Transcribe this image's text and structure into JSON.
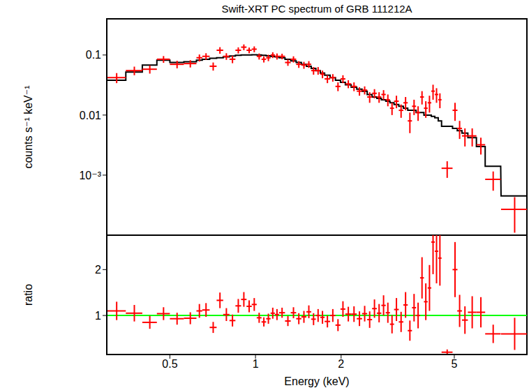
{
  "chart_data": [
    {
      "type": "scatter",
      "title": "Swift-XRT PC spectrum of GRB 111212A",
      "y_label": "counts s⁻¹ keV⁻¹",
      "log": true,
      "tick_labels": "y",
      "color": "#ff0000",
      "model_color": "#000000",
      "xlim": [
        0.3,
        9
      ],
      "xticks": [
        0.5,
        1,
        2,
        5
      ],
      "ylim": [
        0.0001,
        0.4
      ],
      "yticks": [
        {
          "value": 0.001,
          "label": "10⁻³"
        },
        0.01,
        0.1
      ],
      "x": [
        0.325,
        0.375,
        0.425,
        0.475,
        0.53,
        0.59,
        0.635,
        0.67,
        0.71,
        0.75,
        0.79,
        0.83,
        0.87,
        0.91,
        0.95,
        0.99,
        1.03,
        1.07,
        1.11,
        1.15,
        1.19,
        1.24,
        1.3,
        1.36,
        1.42,
        1.48,
        1.54,
        1.6,
        1.66,
        1.72,
        1.79,
        1.87,
        1.95,
        2.03,
        2.12,
        2.22,
        2.32,
        2.42,
        2.52,
        2.62,
        2.72,
        2.82,
        2.92,
        3.02,
        3.13,
        3.25,
        3.37,
        3.49,
        3.61,
        3.73,
        3.85,
        3.97,
        4.09,
        4.21,
        4.33,
        4.45,
        4.72,
        5.03,
        5.22,
        5.45,
        5.78,
        6.2,
        6.85,
        8.15
      ],
      "x_err": [
        [
          0.025,
          0.025
        ],
        [
          0.025,
          0.025
        ],
        [
          0.025,
          0.025
        ],
        [
          0.025,
          0.025
        ],
        [
          0.03,
          0.03
        ],
        [
          0.03,
          0.03
        ],
        [
          0.015,
          0.015
        ],
        [
          0.02,
          0.02
        ],
        [
          0.02,
          0.02
        ],
        [
          0.02,
          0.02
        ],
        [
          0.02,
          0.02
        ],
        [
          0.02,
          0.02
        ],
        [
          0.02,
          0.02
        ],
        [
          0.02,
          0.02
        ],
        [
          0.02,
          0.02
        ],
        [
          0.02,
          0.02
        ],
        [
          0.02,
          0.02
        ],
        [
          0.02,
          0.02
        ],
        [
          0.02,
          0.02
        ],
        [
          0.02,
          0.02
        ],
        [
          0.02,
          0.02
        ],
        [
          0.03,
          0.03
        ],
        [
          0.03,
          0.03
        ],
        [
          0.03,
          0.03
        ],
        [
          0.03,
          0.03
        ],
        [
          0.03,
          0.03
        ],
        [
          0.03,
          0.03
        ],
        [
          0.03,
          0.03
        ],
        [
          0.03,
          0.03
        ],
        [
          0.03,
          0.03
        ],
        [
          0.04,
          0.04
        ],
        [
          0.04,
          0.04
        ],
        [
          0.04,
          0.04
        ],
        [
          0.04,
          0.04
        ],
        [
          0.05,
          0.05
        ],
        [
          0.05,
          0.05
        ],
        [
          0.05,
          0.05
        ],
        [
          0.05,
          0.05
        ],
        [
          0.05,
          0.05
        ],
        [
          0.05,
          0.05
        ],
        [
          0.05,
          0.05
        ],
        [
          0.05,
          0.05
        ],
        [
          0.05,
          0.05
        ],
        [
          0.05,
          0.05
        ],
        [
          0.06,
          0.06
        ],
        [
          0.06,
          0.06
        ],
        [
          0.06,
          0.06
        ],
        [
          0.06,
          0.06
        ],
        [
          0.06,
          0.06
        ],
        [
          0.06,
          0.06
        ],
        [
          0.06,
          0.06
        ],
        [
          0.06,
          0.06
        ],
        [
          0.06,
          0.06
        ],
        [
          0.06,
          0.06
        ],
        [
          0.06,
          0.06
        ],
        [
          0.06,
          0.06
        ],
        [
          0.21,
          0.21
        ],
        [
          0.1,
          0.1
        ],
        [
          0.1,
          0.1
        ],
        [
          0.13,
          0.13
        ],
        [
          0.2,
          0.2
        ],
        [
          0.22,
          0.22
        ],
        [
          0.43,
          0.43
        ],
        [
          0.85,
          0.85
        ]
      ],
      "values": [
        0.042,
        0.055,
        0.058,
        0.085,
        0.07,
        0.072,
        0.09,
        0.095,
        0.065,
        0.12,
        0.095,
        0.085,
        0.12,
        0.135,
        0.12,
        0.125,
        0.095,
        0.085,
        0.09,
        0.1,
        0.095,
        0.095,
        0.075,
        0.085,
        0.07,
        0.068,
        0.07,
        0.055,
        0.055,
        0.048,
        0.04,
        0.042,
        0.03,
        0.04,
        0.033,
        0.03,
        0.025,
        0.026,
        0.02,
        0.023,
        0.02,
        0.022,
        0.018,
        0.013,
        0.017,
        0.012,
        0.016,
        0.008,
        0.014,
        0.011,
        0.02,
        0.013,
        0.016,
        0.025,
        0.022,
        0.018,
        0.0013,
        0.012,
        0.006,
        0.0045,
        0.0045,
        0.0032,
        0.00085,
        0.00027
      ],
      "y_err": [
        0.008,
        0.009,
        0.009,
        0.011,
        0.01,
        0.01,
        0.012,
        0.012,
        0.01,
        0.015,
        0.012,
        0.012,
        0.014,
        0.015,
        0.013,
        0.014,
        0.011,
        0.01,
        0.011,
        0.011,
        0.011,
        0.01,
        0.009,
        0.01,
        0.009,
        0.009,
        0.009,
        0.008,
        0.008,
        0.007,
        0.006,
        0.006,
        0.005,
        0.006,
        0.005,
        0.005,
        0.004,
        0.004,
        0.004,
        0.004,
        0.004,
        0.004,
        0.004,
        0.003,
        0.004,
        0.003,
        0.004,
        0.003,
        0.004,
        0.003,
        0.005,
        0.004,
        0.005,
        0.007,
        0.006,
        0.005,
        0.0004,
        0.004,
        0.002,
        0.0015,
        0.0015,
        0.001,
        0.0003,
        0.00016
      ],
      "model": [
        0.038,
        0.052,
        0.068,
        0.082,
        0.075,
        0.077,
        0.082,
        0.085,
        0.088,
        0.09,
        0.093,
        0.096,
        0.099,
        0.1,
        0.1,
        0.101,
        0.1,
        0.099,
        0.097,
        0.095,
        0.093,
        0.09,
        0.085,
        0.08,
        0.075,
        0.07,
        0.065,
        0.06,
        0.055,
        0.05,
        0.046,
        0.042,
        0.038,
        0.035,
        0.032,
        0.029,
        0.027,
        0.025,
        0.022,
        0.02,
        0.019,
        0.018,
        0.017,
        0.016,
        0.015,
        0.014,
        0.013,
        0.012,
        0.012,
        0.011,
        0.011,
        0.01,
        0.01,
        0.0095,
        0.009,
        0.008,
        0.0065,
        0.006,
        0.0055,
        0.005,
        0.0042,
        0.003,
        0.0014,
        0.00045
      ]
    },
    {
      "type": "scatter",
      "y_label": "ratio",
      "x_label": "Energy (keV)",
      "log": "x",
      "color": "#ff0000",
      "xlim": [
        0.3,
        9
      ],
      "xticks": [
        0.5,
        1,
        2,
        5
      ],
      "ylim": [
        0.15,
        2.75
      ],
      "yticks": [
        1,
        2
      ],
      "reference_line": {
        "y": 1,
        "color": "#00ff00"
      },
      "values": [
        1.1,
        1.05,
        0.85,
        1.04,
        0.93,
        0.94,
        1.1,
        1.12,
        0.74,
        1.33,
        1.02,
        0.89,
        1.21,
        1.35,
        1.2,
        1.24,
        0.95,
        0.86,
        0.93,
        1.05,
        1.02,
        1.06,
        0.88,
        1.06,
        0.93,
        0.97,
        1.08,
        0.92,
        1.0,
        0.96,
        0.87,
        1.0,
        0.79,
        1.14,
        1.03,
        1.03,
        0.93,
        1.04,
        0.91,
        1.15,
        1.05,
        1.22,
        1.06,
        0.81,
        1.13,
        0.86,
        1.23,
        0.67,
        1.17,
        1.0,
        1.82,
        1.3,
        1.6,
        2.6,
        2.4,
        2.25,
        0.2,
        2.0,
        1.1,
        0.9,
        1.07,
        1.07,
        0.6,
        0.6
      ],
      "y_err": [
        0.2,
        0.18,
        0.14,
        0.14,
        0.13,
        0.13,
        0.15,
        0.15,
        0.12,
        0.17,
        0.14,
        0.13,
        0.15,
        0.16,
        0.13,
        0.14,
        0.11,
        0.1,
        0.11,
        0.12,
        0.12,
        0.11,
        0.11,
        0.12,
        0.12,
        0.13,
        0.14,
        0.13,
        0.14,
        0.14,
        0.13,
        0.14,
        0.13,
        0.17,
        0.16,
        0.17,
        0.16,
        0.17,
        0.18,
        0.2,
        0.2,
        0.22,
        0.22,
        0.2,
        0.25,
        0.22,
        0.28,
        0.22,
        0.3,
        0.28,
        0.45,
        0.4,
        0.5,
        0.7,
        0.7,
        0.6,
        0.06,
        0.6,
        0.35,
        0.3,
        0.35,
        0.33,
        0.2,
        0.35
      ]
    }
  ]
}
